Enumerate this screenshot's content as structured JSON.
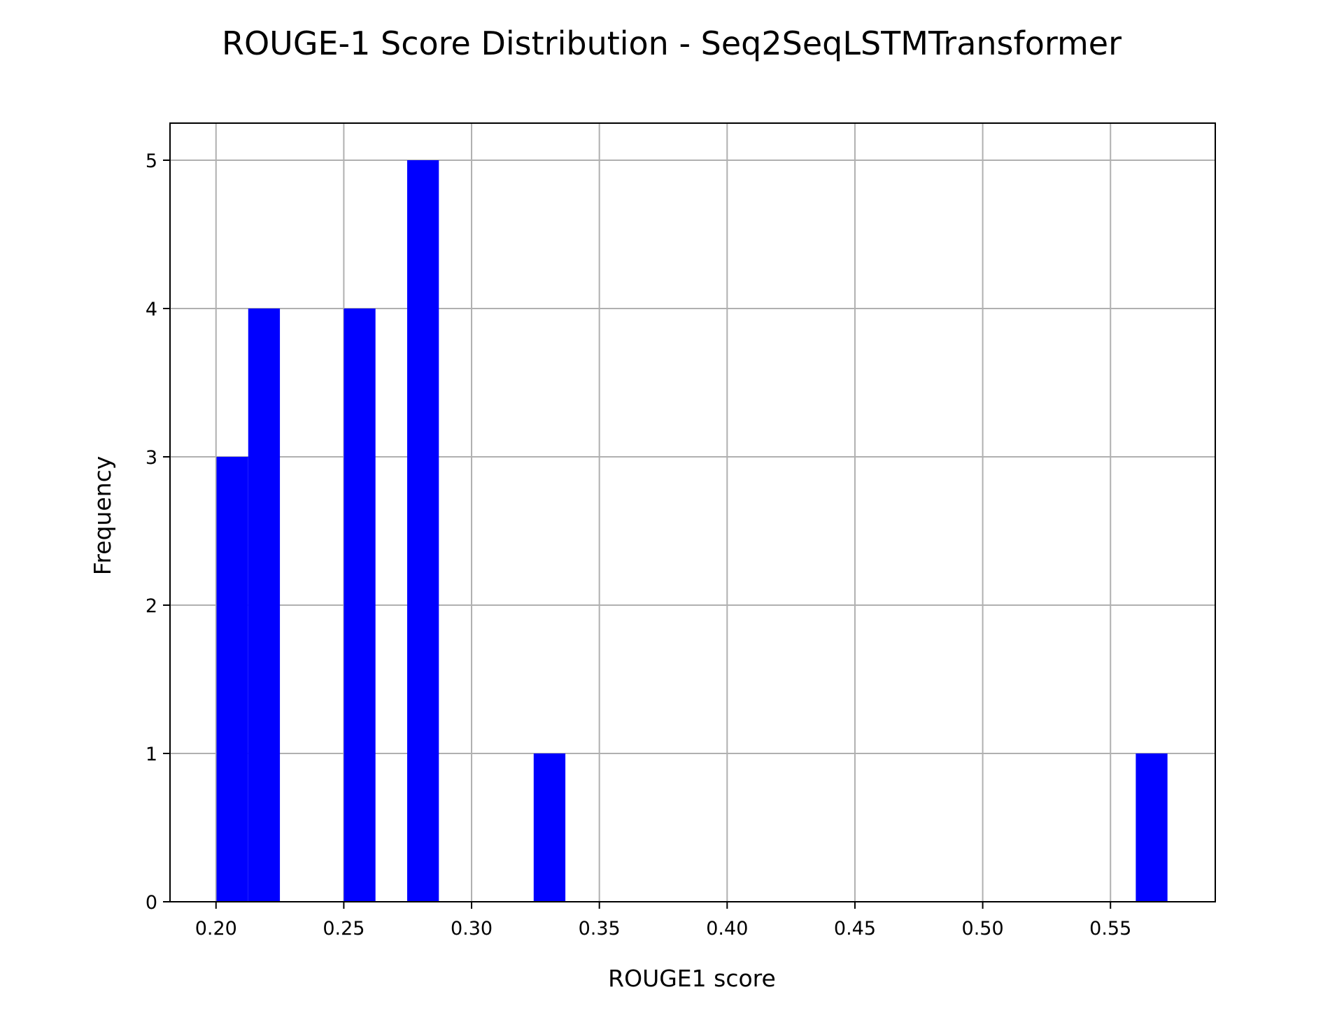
{
  "chart_data": {
    "type": "bar",
    "subtype": "histogram",
    "title": "ROUGE-1 Score Distribution - Seq2SeqLSTMTransformer",
    "xlabel": "ROUGE1 score",
    "ylabel": "Frequency",
    "xlim": [
      0.182,
      0.591
    ],
    "ylim": [
      0,
      5.25
    ],
    "grid": true,
    "bar_color": "#0000ff",
    "grid_color": "#b0b0b0",
    "bin_width": 0.0124,
    "bins": [
      {
        "x0": 0.2002,
        "x1": 0.2126,
        "count": 3
      },
      {
        "x0": 0.2126,
        "x1": 0.225,
        "count": 4
      },
      {
        "x0": 0.25,
        "x1": 0.2624,
        "count": 4
      },
      {
        "x0": 0.2748,
        "x1": 0.2872,
        "count": 5
      },
      {
        "x0": 0.3243,
        "x1": 0.3367,
        "count": 1
      },
      {
        "x0": 0.5599,
        "x1": 0.5723,
        "count": 1
      }
    ],
    "x_ticks": [
      0.2,
      0.25,
      0.3,
      0.35,
      0.4,
      0.45,
      0.5,
      0.55
    ],
    "x_tick_labels": [
      "0.20",
      "0.25",
      "0.30",
      "0.35",
      "0.40",
      "0.45",
      "0.50",
      "0.55"
    ],
    "y_ticks": [
      0,
      1,
      2,
      3,
      4,
      5
    ],
    "y_tick_labels": [
      "0",
      "1",
      "2",
      "3",
      "4",
      "5"
    ]
  }
}
